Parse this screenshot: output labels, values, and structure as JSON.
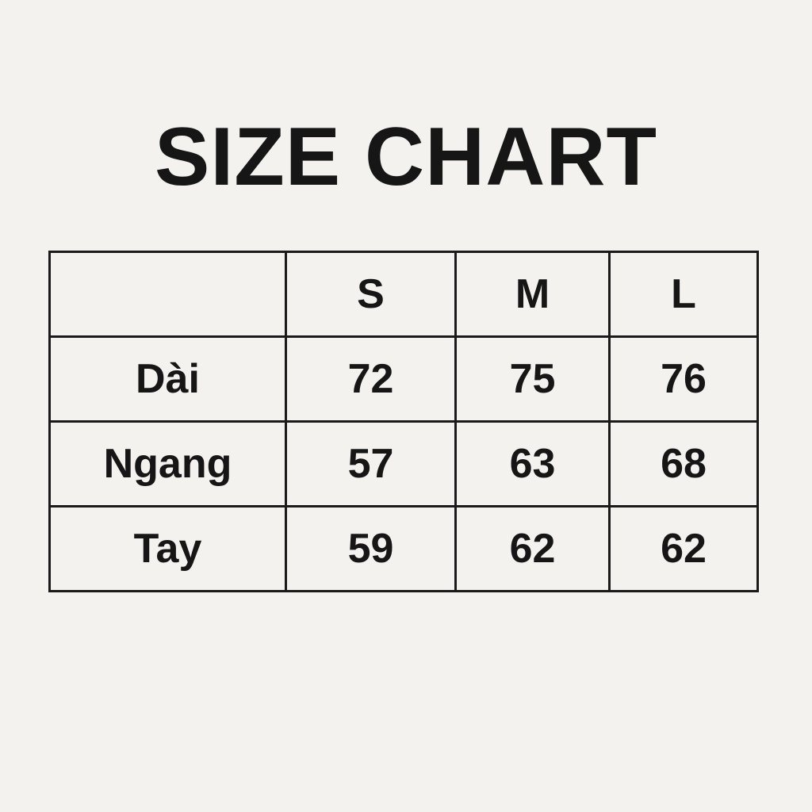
{
  "title": "SIZE CHART",
  "table": {
    "header": [
      "",
      "S",
      "M",
      "L"
    ],
    "rows": [
      [
        "Dài",
        "72",
        "75",
        "76"
      ],
      [
        "Ngang",
        "57",
        "63",
        "68"
      ],
      [
        "Tay",
        "59",
        "62",
        "62"
      ]
    ]
  }
}
